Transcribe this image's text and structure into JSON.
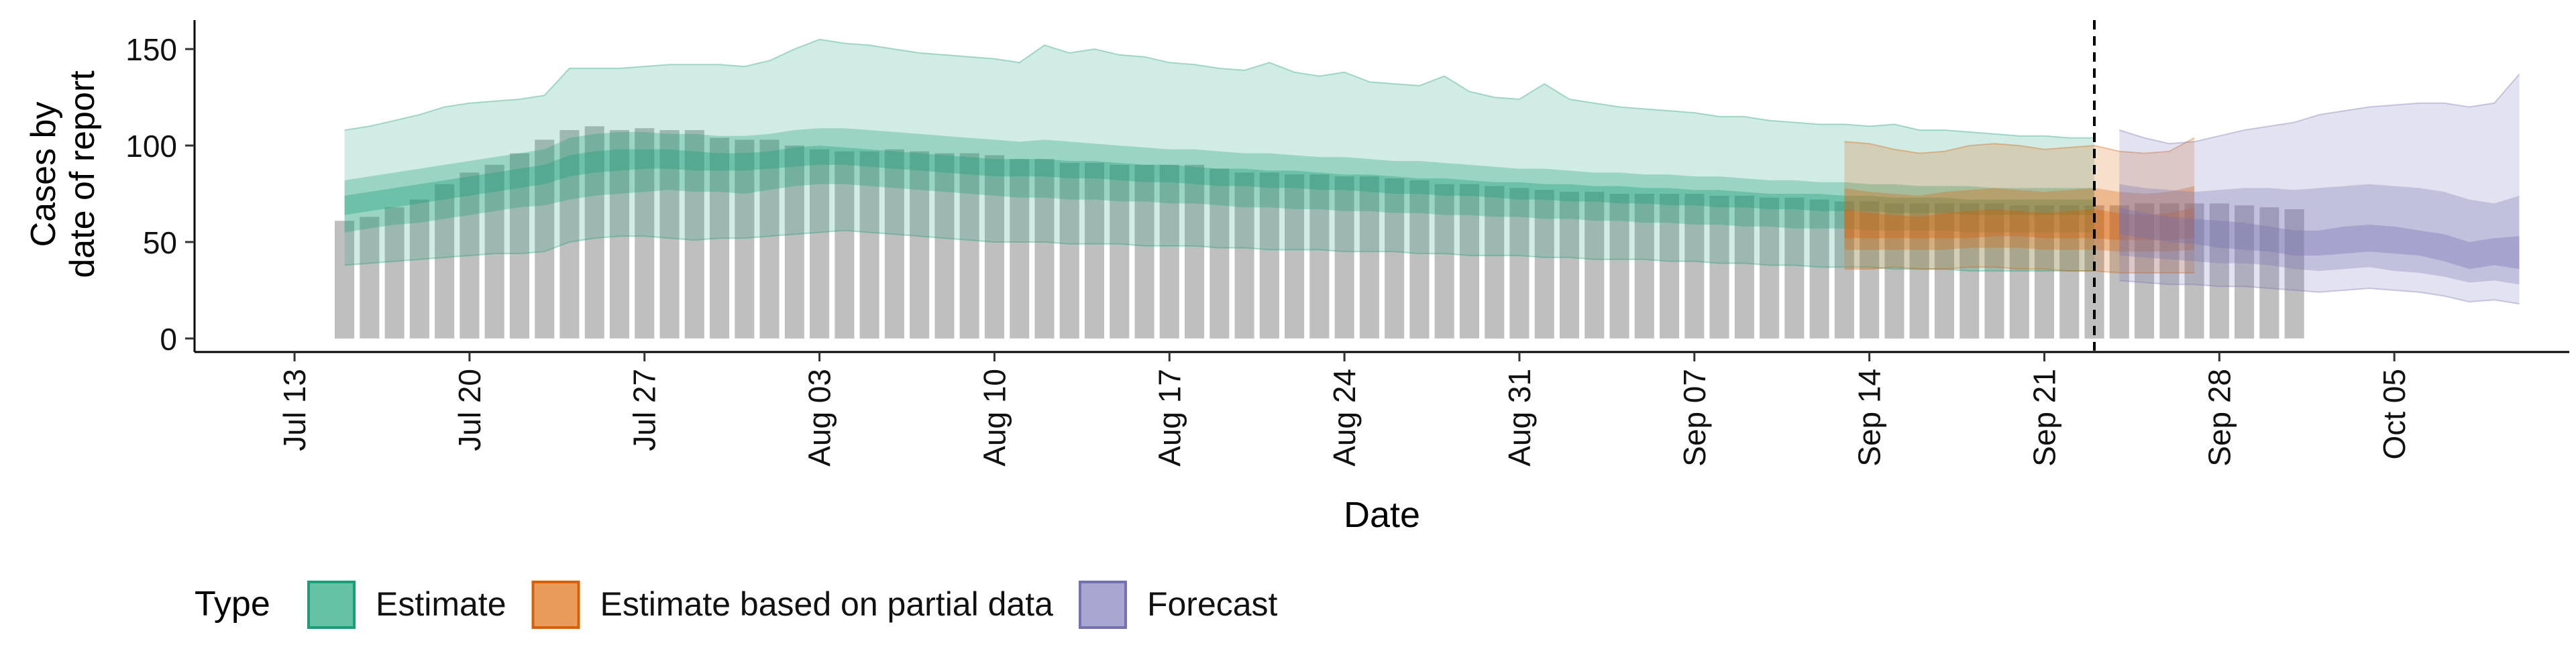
{
  "chart_data": {
    "type": "area",
    "xlabel": "Date",
    "ylabel_lines": [
      "Cases by",
      "date of report"
    ],
    "ylim": [
      -7,
      165
    ],
    "xlim": [
      "2020-07-09",
      "2020-10-12"
    ],
    "yticks": [
      0,
      50,
      100,
      150
    ],
    "x_ticks": [
      {
        "date": "2020-07-13",
        "label": "Jul 13"
      },
      {
        "date": "2020-07-20",
        "label": "Jul 20"
      },
      {
        "date": "2020-07-27",
        "label": "Jul 27"
      },
      {
        "date": "2020-08-03",
        "label": "Aug 03"
      },
      {
        "date": "2020-08-10",
        "label": "Aug 10"
      },
      {
        "date": "2020-08-17",
        "label": "Aug 17"
      },
      {
        "date": "2020-08-24",
        "label": "Aug 24"
      },
      {
        "date": "2020-08-31",
        "label": "Aug 31"
      },
      {
        "date": "2020-09-07",
        "label": "Sep 07"
      },
      {
        "date": "2020-09-14",
        "label": "Sep 14"
      },
      {
        "date": "2020-09-21",
        "label": "Sep 21"
      },
      {
        "date": "2020-09-28",
        "label": "Sep 28"
      },
      {
        "date": "2020-10-05",
        "label": "Oct 05"
      }
    ],
    "grid": false,
    "legend": {
      "title": "Type",
      "position": "bottom-left",
      "entries": [
        {
          "label": "Estimate",
          "fill": "#66c2a5",
          "stroke": "#1b9e77"
        },
        {
          "label": "Estimate based on partial data",
          "fill": "#e99b5b",
          "stroke": "#d95f02"
        },
        {
          "label": "Forecast",
          "fill": "#a9a6d1",
          "stroke": "#7570b3"
        }
      ]
    },
    "reported_cases": {
      "color": "#a0a0a0",
      "start": "2020-07-15",
      "values": [
        61,
        63,
        68,
        72,
        80,
        86,
        90,
        96,
        103,
        108,
        110,
        108,
        109,
        108,
        108,
        104,
        103,
        103,
        100,
        98,
        97,
        97,
        98,
        97,
        96,
        96,
        95,
        93,
        93,
        91,
        91,
        90,
        90,
        90,
        90,
        88,
        86,
        86,
        85,
        85,
        84,
        84,
        83,
        82,
        80,
        80,
        79,
        78,
        77,
        76,
        76,
        75,
        75,
        75,
        75,
        74,
        74,
        73,
        73,
        72,
        71,
        71,
        70,
        70,
        70,
        70,
        70,
        69,
        69,
        69,
        69,
        69,
        70,
        70,
        70,
        70,
        69,
        68,
        67
      ]
    },
    "vertical_line": {
      "date": "2020-09-23",
      "style": "dashed"
    },
    "series": [
      {
        "name": "Estimate",
        "color": "#1b9e77",
        "start": "2020-07-15",
        "outer_lower": [
          38,
          39,
          40,
          41,
          42,
          43,
          44,
          44,
          45,
          50,
          52,
          53,
          53,
          52,
          51,
          52,
          52,
          53,
          54,
          55,
          56,
          55,
          54,
          53,
          52,
          51,
          50,
          50,
          50,
          49,
          49,
          49,
          48,
          48,
          48,
          47,
          47,
          46,
          46,
          46,
          45,
          45,
          45,
          44,
          44,
          43,
          43,
          43,
          42,
          42,
          41,
          41,
          41,
          40,
          40,
          39,
          39,
          38,
          38,
          37,
          37,
          37,
          36,
          36,
          36,
          35,
          35,
          35,
          35,
          35,
          35
        ],
        "outer_upper": [
          108,
          110,
          113,
          116,
          120,
          122,
          123,
          124,
          126,
          140,
          140,
          140,
          141,
          142,
          142,
          142,
          141,
          144,
          150,
          155,
          153,
          152,
          150,
          148,
          147,
          146,
          145,
          143,
          152,
          148,
          150,
          147,
          146,
          143,
          142,
          140,
          139,
          143,
          138,
          136,
          138,
          133,
          132,
          131,
          136,
          128,
          125,
          124,
          132,
          124,
          122,
          120,
          119,
          118,
          117,
          115,
          115,
          113,
          112,
          111,
          111,
          110,
          111,
          108,
          108,
          107,
          106,
          105,
          105,
          104,
          104
        ],
        "inner_lower": [
          55,
          57,
          59,
          60,
          62,
          64,
          66,
          68,
          69,
          72,
          74,
          75,
          76,
          77,
          76,
          76,
          75,
          77,
          79,
          80,
          80,
          79,
          78,
          77,
          76,
          75,
          74,
          73,
          73,
          72,
          72,
          71,
          71,
          70,
          70,
          69,
          68,
          68,
          67,
          67,
          66,
          66,
          65,
          65,
          64,
          64,
          63,
          63,
          62,
          62,
          61,
          61,
          60,
          60,
          59,
          59,
          58,
          58,
          57,
          57,
          57,
          56,
          56,
          56,
          56,
          55,
          55,
          55,
          55,
          55,
          55
        ],
        "inner_upper": [
          82,
          84,
          86,
          88,
          90,
          92,
          94,
          96,
          98,
          104,
          106,
          107,
          107,
          106,
          106,
          105,
          105,
          106,
          108,
          109,
          109,
          108,
          107,
          106,
          105,
          104,
          103,
          102,
          103,
          102,
          101,
          100,
          99,
          98,
          98,
          97,
          96,
          96,
          95,
          94,
          94,
          93,
          92,
          92,
          91,
          90,
          89,
          88,
          88,
          87,
          86,
          86,
          85,
          85,
          84,
          84,
          83,
          82,
          82,
          81,
          81,
          80,
          80,
          79,
          79,
          79,
          78,
          78,
          78,
          78,
          78
        ],
        "core_lower": [
          64,
          66,
          68,
          70,
          72,
          74,
          76,
          78,
          80,
          84,
          86,
          87,
          88,
          88,
          87,
          87,
          87,
          88,
          89,
          90,
          90,
          89,
          88,
          87,
          86,
          85,
          84,
          84,
          84,
          83,
          83,
          82,
          81,
          81,
          80,
          79,
          79,
          78,
          78,
          77,
          77,
          76,
          75,
          75,
          74,
          74,
          73,
          72,
          72,
          71,
          71,
          70,
          70,
          69,
          69,
          68,
          68,
          67,
          67,
          66,
          66,
          66,
          65,
          65,
          65,
          64,
          64,
          64,
          64,
          64,
          64
        ],
        "core_upper": [
          74,
          76,
          78,
          80,
          82,
          84,
          86,
          88,
          90,
          95,
          97,
          98,
          98,
          98,
          97,
          96,
          96,
          97,
          99,
          100,
          99,
          98,
          97,
          96,
          95,
          94,
          93,
          93,
          93,
          92,
          92,
          91,
          90,
          90,
          89,
          88,
          88,
          87,
          87,
          86,
          85,
          85,
          84,
          83,
          83,
          82,
          81,
          81,
          80,
          80,
          79,
          79,
          78,
          78,
          77,
          77,
          76,
          75,
          75,
          75,
          74,
          74,
          73,
          73,
          73,
          72,
          72,
          72,
          72,
          72,
          72
        ]
      },
      {
        "name": "Estimate based on partial data",
        "color": "#d95f02",
        "start": "2020-09-13",
        "outer_lower": [
          36,
          36,
          37,
          36,
          36,
          37,
          37,
          36,
          36,
          35,
          35,
          34,
          34,
          34,
          34
        ],
        "outer_upper": [
          102,
          101,
          98,
          96,
          97,
          100,
          101,
          100,
          98,
          99,
          100,
          97,
          96,
          97,
          104
        ],
        "inner_lower": [
          46,
          46,
          46,
          46,
          46,
          47,
          47,
          47,
          46,
          46,
          46,
          45,
          45,
          45,
          46
        ],
        "inner_upper": [
          78,
          76,
          75,
          74,
          76,
          77,
          78,
          77,
          76,
          77,
          78,
          76,
          75,
          76,
          79
        ],
        "core_lower": [
          52,
          52,
          52,
          52,
          52,
          52,
          53,
          53,
          52,
          52,
          52,
          51,
          51,
          51,
          52
        ],
        "core_upper": [
          67,
          65,
          64,
          63,
          65,
          66,
          67,
          66,
          65,
          66,
          67,
          65,
          64,
          65,
          68
        ]
      },
      {
        "name": "Forecast",
        "color": "#7570b3",
        "start": "2020-09-24",
        "outer_lower": [
          30,
          29,
          28,
          28,
          27,
          27,
          26,
          25,
          24,
          25,
          26,
          25,
          24,
          22,
          19,
          20,
          18
        ],
        "outer_upper": [
          108,
          104,
          101,
          102,
          105,
          108,
          110,
          112,
          116,
          118,
          120,
          121,
          122,
          122,
          120,
          122,
          137
        ],
        "inner_lower": [
          43,
          42,
          41,
          40,
          39,
          39,
          38,
          36,
          35,
          36,
          37,
          35,
          34,
          32,
          29,
          30,
          28
        ],
        "inner_upper": [
          80,
          78,
          77,
          76,
          77,
          78,
          78,
          77,
          78,
          79,
          80,
          79,
          78,
          76,
          72,
          70,
          74
        ],
        "core_lower": [
          54,
          52,
          50,
          49,
          47,
          46,
          45,
          43,
          43,
          44,
          45,
          44,
          43,
          40,
          36,
          38,
          36
        ],
        "core_upper": [
          68,
          65,
          63,
          62,
          61,
          60,
          58,
          56,
          56,
          58,
          59,
          58,
          56,
          54,
          50,
          52,
          53
        ]
      }
    ]
  }
}
